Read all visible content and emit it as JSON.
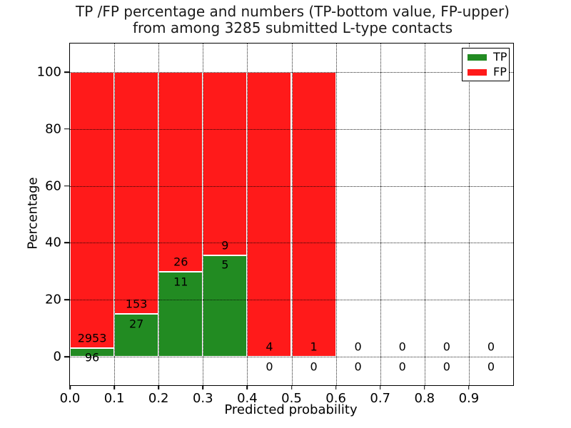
{
  "figure": {
    "title_line1": "TP /FP percentage and numbers (TP-bottom value, FP-upper)",
    "title_line2": "from among 3285 submitted L-type contacts"
  },
  "chart_data": {
    "type": "bar",
    "stacked": true,
    "title": "TP /FP percentage and numbers (TP-bottom value, FP-upper) from among 3285 submitted L-type contacts",
    "xlabel": "Predicted probability",
    "ylabel": "Percentage",
    "xlim": [
      0.0,
      1.0
    ],
    "ylim": [
      -10,
      110
    ],
    "x_ticks": [
      0.0,
      0.1,
      0.2,
      0.3,
      0.4,
      0.5,
      0.6,
      0.7,
      0.8,
      0.9
    ],
    "x_tick_labels": [
      "0.0",
      "0.1",
      "0.2",
      "0.3",
      "0.4",
      "0.5",
      "0.6",
      "0.7",
      "0.8",
      "0.9"
    ],
    "y_ticks": [
      0,
      20,
      40,
      60,
      80,
      100
    ],
    "grid": true,
    "grid_style": "dotted",
    "legend_position": "upper right",
    "total_submitted": 3285,
    "bin_width": 0.1,
    "categories": [
      "0.0-0.1",
      "0.1-0.2",
      "0.2-0.3",
      "0.3-0.4",
      "0.4-0.5",
      "0.5-0.6",
      "0.6-0.7",
      "0.7-0.8",
      "0.8-0.9",
      "0.9-1.0"
    ],
    "series": [
      {
        "name": "TP",
        "color": "#228B22",
        "counts": [
          96,
          27,
          11,
          5,
          0,
          0,
          0,
          0,
          0,
          0
        ],
        "percent": [
          3.149,
          15.0,
          29.73,
          35.714,
          0,
          0,
          null,
          null,
          null,
          null
        ]
      },
      {
        "name": "FP",
        "color": "#FF1A1A",
        "counts": [
          2953,
          153,
          26,
          9,
          4,
          1,
          0,
          0,
          0,
          0
        ],
        "percent": [
          96.851,
          85.0,
          70.27,
          64.286,
          100,
          100,
          null,
          null,
          null,
          null
        ]
      }
    ],
    "label_offset_pct": 3.5,
    "bar_edge_color": "#ffffff",
    "text_color": "#000000"
  }
}
